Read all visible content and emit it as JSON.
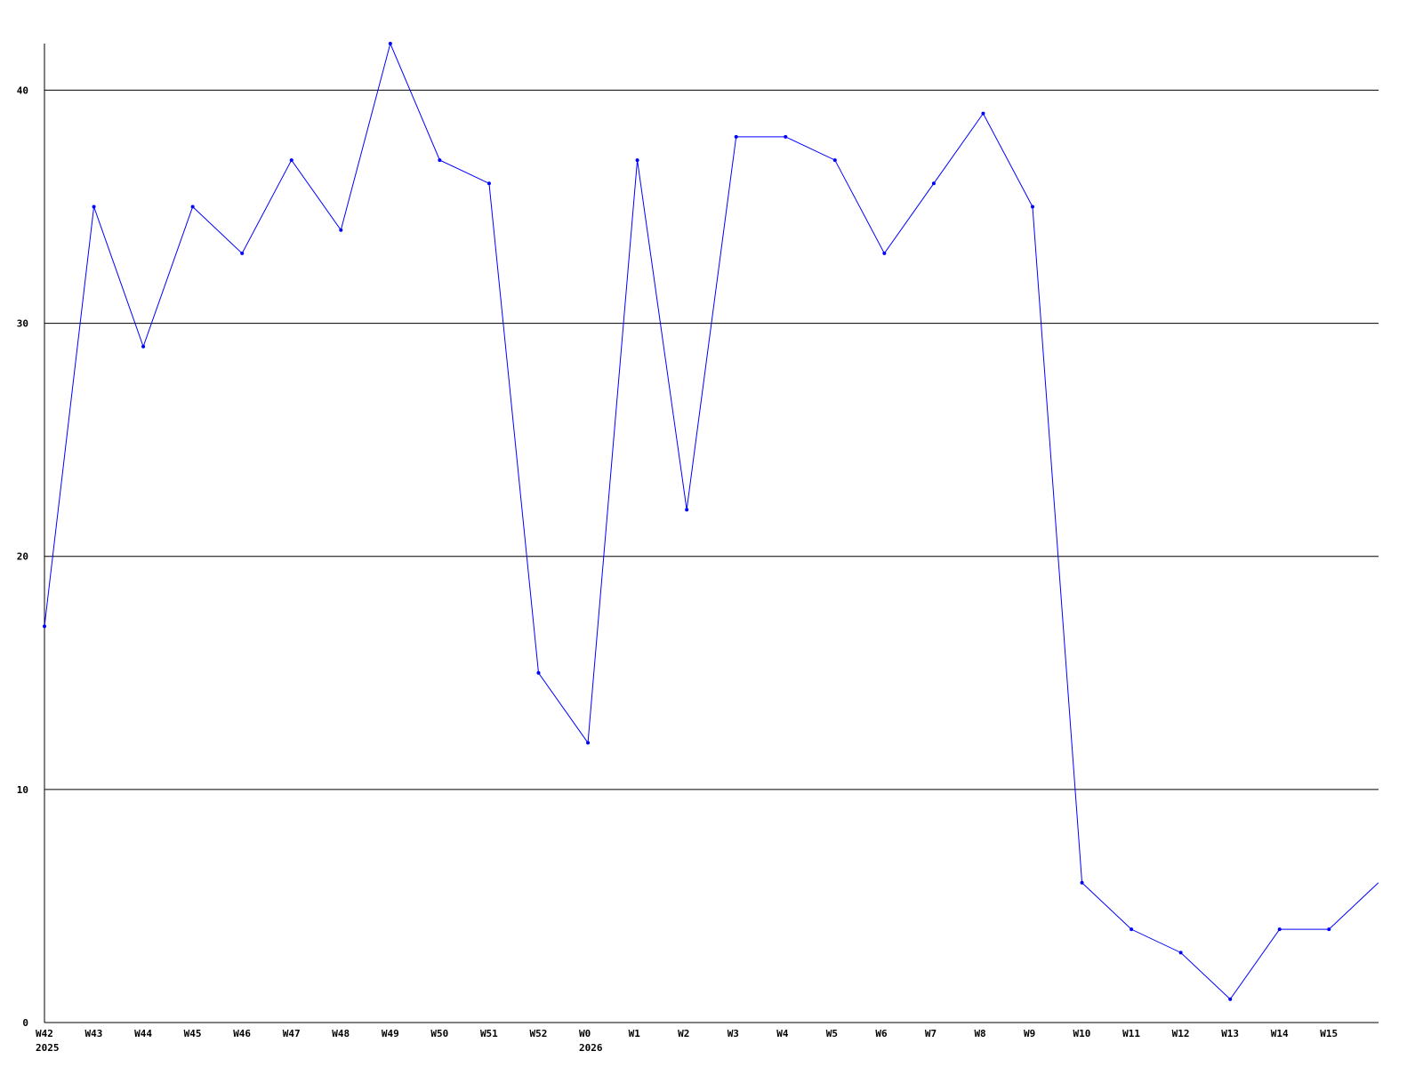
{
  "chart_data": {
    "type": "line",
    "title": "",
    "xlabel": "",
    "ylabel": "",
    "ylim": [
      0,
      42
    ],
    "yticks": [
      0,
      10,
      20,
      30,
      40
    ],
    "grid": true,
    "line_color": "#0000ff",
    "categories": [
      "W42",
      "W43",
      "W44",
      "W45",
      "W46",
      "W47",
      "W48",
      "W49",
      "W50",
      "W51",
      "W52",
      "W0",
      "W1",
      "W2",
      "W3",
      "W4",
      "W5",
      "W6",
      "W7",
      "W8",
      "W9",
      "W10",
      "W11",
      "W12",
      "W13",
      "W14",
      "W15",
      ""
    ],
    "year_labels": [
      {
        "index": 0,
        "label": "2025"
      },
      {
        "index": 11,
        "label": "2026"
      }
    ],
    "values": [
      17,
      35,
      29,
      35,
      33,
      37,
      34,
      42,
      37,
      36,
      15,
      12,
      37,
      22,
      38,
      38,
      37,
      33,
      36,
      39,
      35,
      6,
      4,
      3,
      1,
      4,
      4,
      6
    ]
  }
}
